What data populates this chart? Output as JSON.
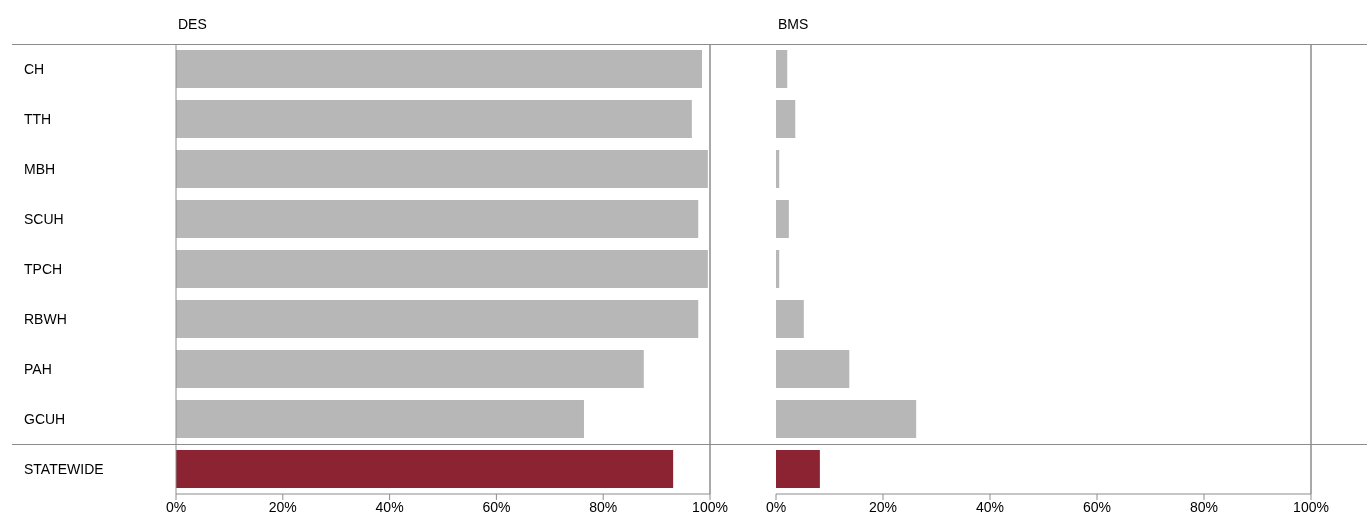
{
  "chart_data": [
    {
      "type": "bar",
      "title": "DES",
      "orientation": "horizontal",
      "categories": [
        "CH",
        "TTH",
        "MBH",
        "SCUH",
        "TPCH",
        "RBWH",
        "PAH",
        "GCUH",
        "STATEWIDE"
      ],
      "values": [
        98.5,
        96.6,
        99.6,
        97.8,
        99.6,
        97.8,
        87.6,
        76.4,
        93.1
      ],
      "colors": [
        "#b7b7b7",
        "#b7b7b7",
        "#b7b7b7",
        "#b7b7b7",
        "#b7b7b7",
        "#b7b7b7",
        "#b7b7b7",
        "#b7b7b7",
        "#8b2332"
      ],
      "xlim": [
        0,
        100
      ],
      "xticks": [
        {
          "value": 0,
          "label": "0%"
        },
        {
          "value": 20,
          "label": "20%"
        },
        {
          "value": 40,
          "label": "40%"
        },
        {
          "value": 60,
          "label": "60%"
        },
        {
          "value": 80,
          "label": "80%"
        },
        {
          "value": 100,
          "label": "100%"
        }
      ],
      "ref_lines": [
        {
          "axis": "x",
          "value": 100,
          "label": null,
          "color": "#8c8c8c"
        }
      ]
    },
    {
      "type": "bar",
      "title": "BMS",
      "orientation": "horizontal",
      "tick_labels": "x",
      "categories": [
        null,
        null,
        null,
        null,
        null,
        null,
        null,
        null,
        null
      ],
      "values": [
        2.1,
        3.6,
        0.6,
        2.4,
        0.6,
        5.2,
        13.7,
        26.2,
        8.2
      ],
      "colors": [
        "#b7b7b7",
        "#b7b7b7",
        "#b7b7b7",
        "#b7b7b7",
        "#b7b7b7",
        "#b7b7b7",
        "#b7b7b7",
        "#b7b7b7",
        "#8b2332"
      ],
      "xlim": [
        0,
        100
      ],
      "xticks": [
        {
          "value": 0,
          "label": "0%"
        },
        {
          "value": 20,
          "label": "20%"
        },
        {
          "value": 40,
          "label": "40%"
        },
        {
          "value": 60,
          "label": "60%"
        },
        {
          "value": 80,
          "label": "80%"
        },
        {
          "value": 100,
          "label": "100%"
        }
      ],
      "ref_lines": [
        {
          "axis": "x",
          "value": 100,
          "label": null,
          "color": "#8c8c8c"
        }
      ]
    }
  ]
}
